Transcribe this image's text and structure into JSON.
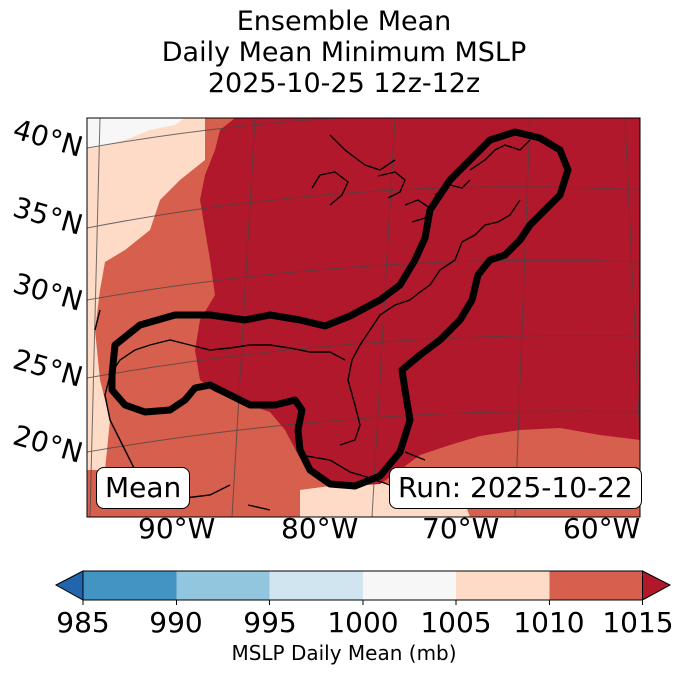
{
  "title": {
    "line1": "Ensemble Mean",
    "line2": "Daily Mean Minimum MSLP",
    "line3": "2025-10-25 12z-12z"
  },
  "map": {
    "lat_labels": [
      "40°N",
      "35°N",
      "30°N",
      "25°N",
      "20°N"
    ],
    "lon_labels": [
      "90°W",
      "80°W",
      "70°W",
      "60°W"
    ],
    "mean_label": "Mean",
    "run_label": "Run: 2025-10-22"
  },
  "colorbar": {
    "ticks": [
      "985",
      "990",
      "995",
      "1000",
      "1005",
      "1010",
      "1015"
    ],
    "title": "MSLP Daily Mean (mb)",
    "colors": {
      "below_985": "#2166ac",
      "985_990": "#4393c3",
      "990_995": "#92c5de",
      "995_1000": "#d1e5f0",
      "1000_1005": "#f7f7f7",
      "1005_1010": "#fddbc7",
      "1010_1015": "#d6604d",
      "above_1015": "#b2182b"
    }
  }
}
